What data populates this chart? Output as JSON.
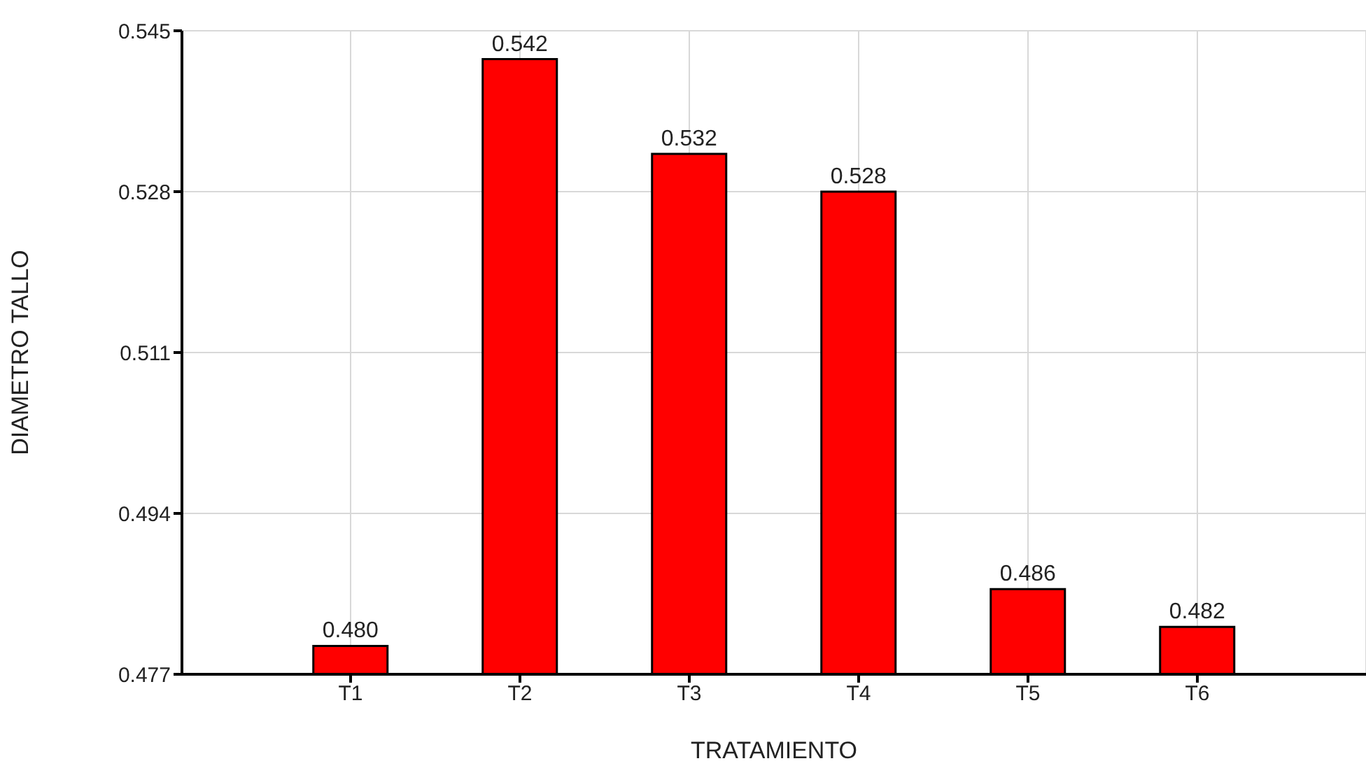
{
  "chart_data": {
    "type": "bar",
    "xlabel": "TRATAMIENTO",
    "ylabel": "DIAMETRO TALLO",
    "categories": [
      "T1",
      "T2",
      "T3",
      "T4",
      "T5",
      "T6"
    ],
    "values": [
      0.48,
      0.542,
      0.532,
      0.528,
      0.486,
      0.482
    ],
    "color": "#ff0000",
    "ylim": [
      0.477,
      0.545
    ],
    "yticks": [
      0.477,
      0.494,
      0.511,
      0.528,
      0.545
    ],
    "value_labels": [
      "0.480",
      "0.542",
      "0.532",
      "0.528",
      "0.486",
      "0.482"
    ],
    "grid": true
  }
}
